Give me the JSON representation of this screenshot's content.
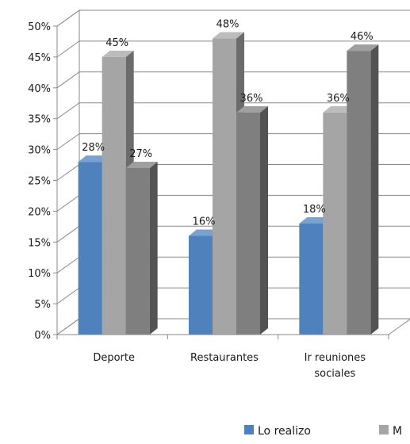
{
  "chart_data": {
    "type": "bar",
    "style": "3d-clustered-column",
    "categories": [
      [
        "Deporte"
      ],
      [
        "Restaurantes"
      ],
      [
        "Ir  reuniones",
        "sociales"
      ]
    ],
    "series": [
      {
        "name": "Lo realizo",
        "color": "#4f81bd",
        "values": [
          28,
          16,
          18
        ]
      },
      {
        "name": "M",
        "color": "#a5a5a5",
        "values": [
          45,
          48,
          36
        ]
      },
      {
        "name": "",
        "color": "#7f7f7f",
        "values": [
          27,
          36,
          46
        ]
      }
    ],
    "data_labels": [
      [
        "28%",
        "16%",
        "18%"
      ],
      [
        "45%",
        "48%",
        "36%"
      ],
      [
        "27%",
        "36%",
        "46%"
      ]
    ],
    "yticks": [
      "0%",
      "5%",
      "10%",
      "15%",
      "20%",
      "25%",
      "30%",
      "35%",
      "40%",
      "45%",
      "50%"
    ],
    "ylim": [
      0,
      50
    ],
    "y_unit": "%",
    "grid": true,
    "legend": {
      "position": "bottom",
      "labels": [
        "Lo realizo",
        "M"
      ]
    }
  }
}
